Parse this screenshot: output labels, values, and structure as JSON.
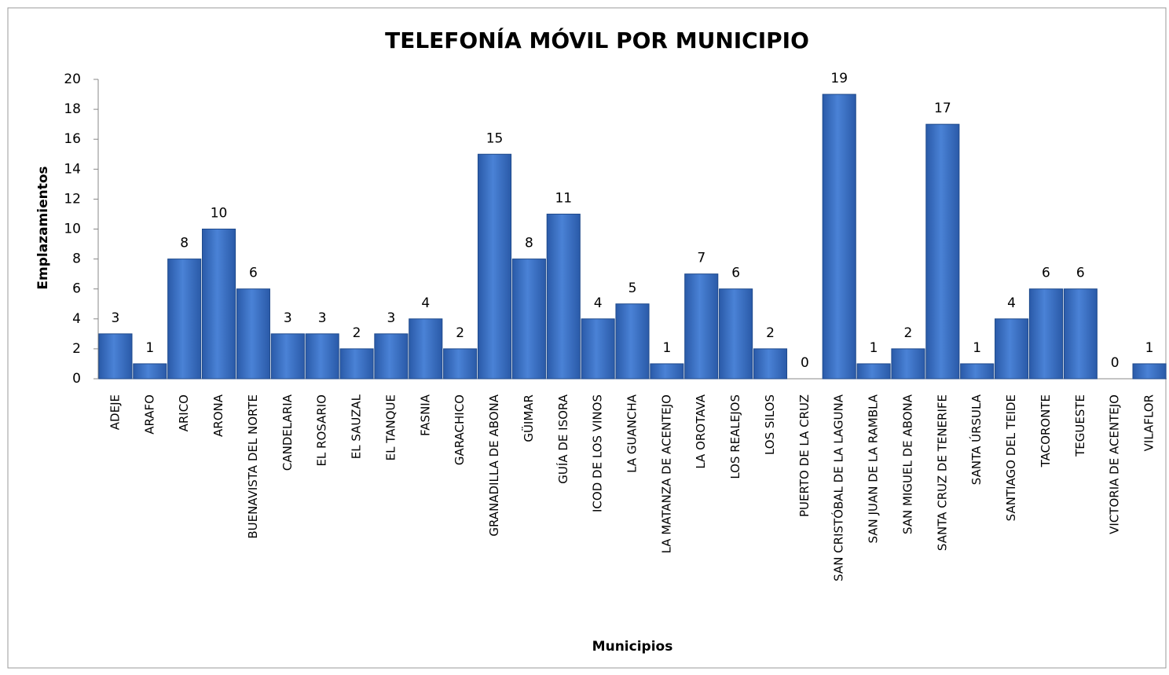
{
  "chart_data": {
    "type": "bar",
    "title": "TELEFONÍA MÓVIL POR MUNICIPIO",
    "x_label": "Municipios",
    "y_label": "Emplazamientos",
    "categories": [
      "ADEJE",
      "ARAFO",
      "ARICO",
      "ARONA",
      "BUENAVISTA DEL NORTE",
      "CANDELARIA",
      "EL ROSARIO",
      "EL SAUZAL",
      "EL TANQUE",
      "FASNIA",
      "GARACHICO",
      "GRANADILLA DE ABONA",
      "GÜIMAR",
      "GUÍA DE ISORA",
      "ICOD DE LOS VINOS",
      "LA GUANCHA",
      "LA MATANZA DE ACENTEJO",
      "LA OROTAVA",
      "LOS REALEJOS",
      "LOS SILOS",
      "PUERTO DE LA CRUZ",
      "SAN CRISTÓBAL DE LA LAGUNA",
      "SAN JUAN DE LA RAMBLA",
      "SAN MIGUEL DE ABONA",
      "SANTA CRUZ DE TENERIFE",
      "SANTA ÚRSULA",
      "SANTIAGO DEL TEIDE",
      "TACORONTE",
      "TEGUESTE",
      "VICTORIA DE ACENTEJO",
      "VILAFLOR"
    ],
    "values": [
      3,
      1,
      8,
      10,
      6,
      3,
      3,
      2,
      3,
      4,
      2,
      15,
      8,
      11,
      4,
      5,
      1,
      7,
      6,
      2,
      0,
      19,
      1,
      2,
      17,
      1,
      4,
      6,
      6,
      0,
      1
    ],
    "color": "#3a6fc4",
    "ylim": [
      0,
      20
    ],
    "yticks": [
      0,
      2,
      4,
      6,
      8,
      10,
      12,
      14,
      16,
      18,
      20
    ],
    "grid": false
  }
}
